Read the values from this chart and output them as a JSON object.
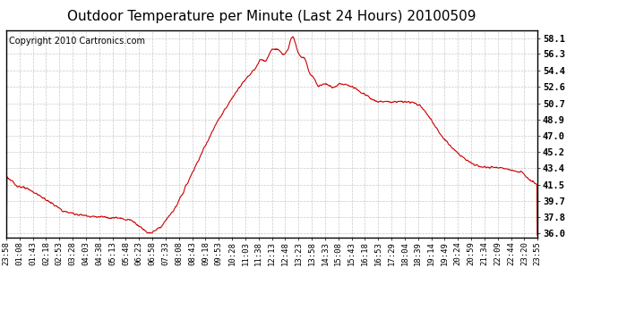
{
  "title": "Outdoor Temperature per Minute (Last 24 Hours) 20100509",
  "copyright": "Copyright 2010 Cartronics.com",
  "line_color": "#cc0000",
  "background_color": "#ffffff",
  "plot_bg_color": "#ffffff",
  "grid_color": "#bbbbbb",
  "yticks": [
    36.0,
    37.8,
    39.7,
    41.5,
    43.4,
    45.2,
    47.0,
    48.9,
    50.7,
    52.6,
    54.4,
    56.3,
    58.1
  ],
  "ylim": [
    35.5,
    59.0
  ],
  "xtick_labels": [
    "23:58",
    "01:08",
    "01:43",
    "02:18",
    "02:53",
    "03:28",
    "04:03",
    "04:38",
    "05:13",
    "05:48",
    "06:23",
    "06:58",
    "07:33",
    "08:08",
    "08:43",
    "09:18",
    "09:53",
    "10:28",
    "11:03",
    "11:38",
    "12:13",
    "12:48",
    "13:23",
    "13:58",
    "14:33",
    "15:08",
    "15:43",
    "16:18",
    "16:53",
    "17:29",
    "18:04",
    "18:39",
    "19:14",
    "19:49",
    "20:24",
    "20:59",
    "21:34",
    "22:09",
    "22:44",
    "23:20",
    "23:55"
  ],
  "title_fontsize": 11,
  "copyright_fontsize": 7,
  "tick_fontsize": 6.5,
  "ytick_fontsize": 7.5,
  "line_width": 0.8
}
